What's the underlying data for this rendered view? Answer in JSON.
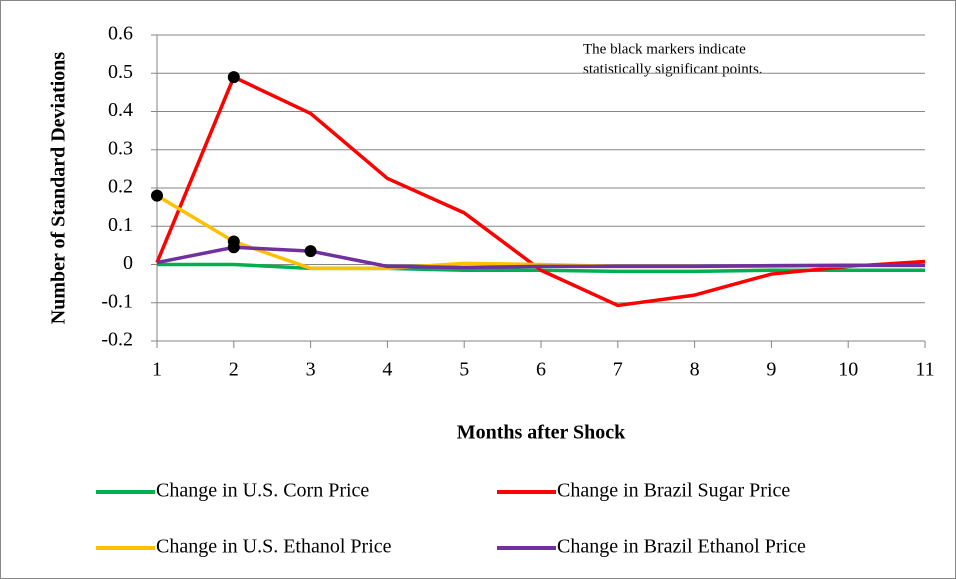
{
  "chart_data": {
    "type": "line",
    "x_label": "Months after Shock",
    "y_label": "Number of Standard Deviations",
    "annotation": [
      "The black markers indicate",
      "statistically significant points."
    ],
    "x": [
      1,
      2,
      3,
      4,
      5,
      6,
      7,
      8,
      9,
      10,
      11
    ],
    "xlim": [
      1,
      11
    ],
    "xticks": [
      1,
      2,
      3,
      4,
      5,
      6,
      7,
      8,
      9,
      10,
      11
    ],
    "ylim": [
      -0.2,
      0.6
    ],
    "yticks": [
      0.6,
      0.5,
      0.4,
      0.3,
      0.2,
      0.1,
      0,
      -0.1,
      -0.2
    ],
    "grid": true,
    "marker_color": "#000000",
    "series": [
      {
        "name": "Change in U.S. Corn Price",
        "color": "#00b050",
        "values": [
          0,
          0,
          -0.01,
          -0.01,
          -0.015,
          -0.015,
          -0.018,
          -0.018,
          -0.015,
          -0.015,
          -0.015
        ],
        "significant": [
          false,
          false,
          false,
          false,
          false,
          false,
          false,
          false,
          false,
          false,
          false
        ]
      },
      {
        "name": "Change in Brazil Sugar Price",
        "color": "#ff0000",
        "values": [
          0.005,
          0.49,
          0.395,
          0.225,
          0.135,
          -0.015,
          -0.107,
          -0.08,
          -0.025,
          -0.005,
          0.008
        ],
        "significant": [
          false,
          true,
          false,
          false,
          false,
          false,
          false,
          false,
          false,
          false,
          false
        ]
      },
      {
        "name": "Change in U.S. Ethanol Price",
        "color": "#ffc000",
        "values": [
          0.18,
          0.06,
          -0.01,
          -0.01,
          0.003,
          0,
          -0.005,
          -0.005,
          -0.005,
          -0.003,
          -0.003
        ],
        "significant": [
          true,
          true,
          false,
          false,
          false,
          false,
          false,
          false,
          false,
          false,
          false
        ]
      },
      {
        "name": "Change in Brazil Ethanol Price",
        "color": "#7030a0",
        "values": [
          0.005,
          0.045,
          0.035,
          -0.005,
          -0.008,
          -0.005,
          -0.005,
          -0.005,
          -0.003,
          -0.002,
          -0.002
        ],
        "significant": [
          false,
          true,
          true,
          false,
          false,
          false,
          false,
          false,
          false,
          false,
          false
        ]
      }
    ]
  }
}
